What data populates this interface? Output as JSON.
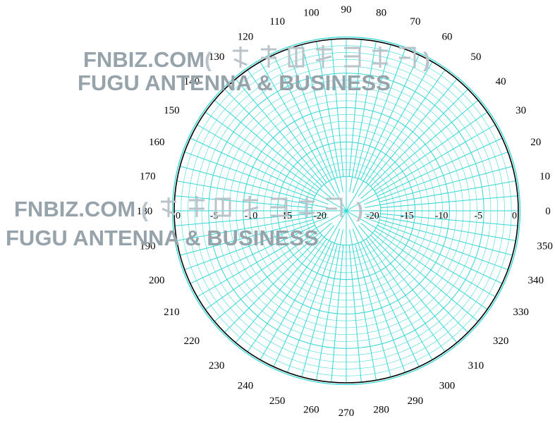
{
  "chart_data": {
    "type": "polar",
    "angle_unit": "degrees",
    "angle_ticks": [
      0,
      10,
      20,
      30,
      40,
      50,
      60,
      70,
      80,
      90,
      100,
      110,
      120,
      130,
      140,
      150,
      160,
      170,
      180,
      190,
      200,
      210,
      220,
      230,
      240,
      250,
      260,
      270,
      280,
      290,
      300,
      310,
      320,
      330,
      340,
      350
    ],
    "radial_ticks": [
      0,
      -5,
      -10,
      -15,
      -20
    ],
    "radial_axis_labels_left": [
      "0",
      "-5",
      "-10",
      "-15",
      "-20"
    ],
    "radial_axis_labels_right": [
      "-20",
      "-15",
      "-10",
      "-5",
      "0"
    ],
    "radial_range": [
      -25,
      0
    ],
    "radial_unit": "dB",
    "grid": true,
    "grid_color": "#33d6d6",
    "series": [
      {
        "values_db": 0,
        "theta_range": [
          0,
          360
        ],
        "color": "#000000"
      }
    ]
  },
  "watermark": {
    "line1": "FNBIZ.COM",
    "line1_paren_open": "(",
    "line1_paren_close": ")",
    "line2": "FUGU ANTENNA & BUSINESS",
    "color": "#97a3ab"
  }
}
